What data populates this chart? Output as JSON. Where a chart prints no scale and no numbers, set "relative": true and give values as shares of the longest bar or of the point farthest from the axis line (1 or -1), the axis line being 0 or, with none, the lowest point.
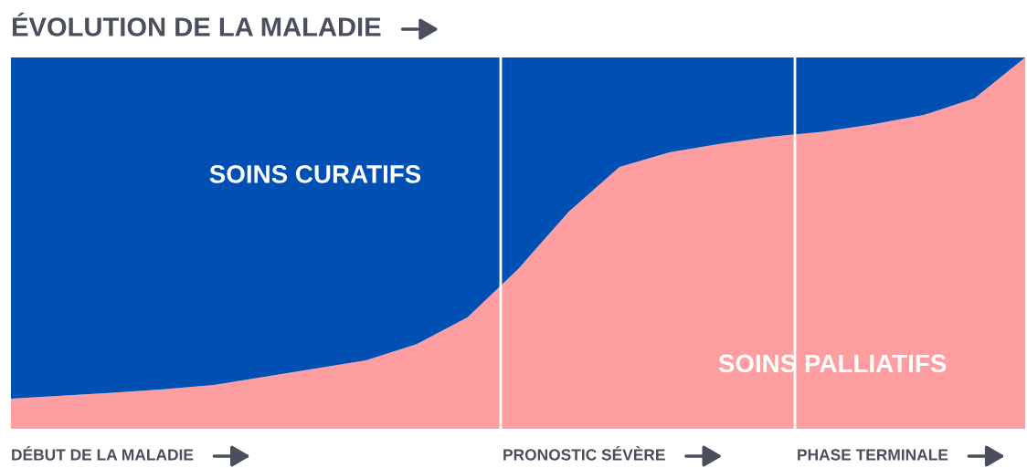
{
  "chart_data": {
    "type": "area",
    "stacked": true,
    "relative": true,
    "title": "ÉVOLUTION DE LA MALADIE",
    "categories": [
      null,
      null,
      null,
      null,
      null,
      null,
      null,
      null,
      null,
      null,
      null,
      null,
      null,
      null,
      null,
      null,
      null,
      null,
      null,
      null,
      null
    ],
    "series": [
      {
        "name": "SOINS PALLIATIFS",
        "color": "#ff9ea0",
        "values": [
          0.081,
          0.089,
          0.097,
          0.106,
          0.118,
          0.14,
          0.162,
          0.184,
          0.228,
          0.3,
          0.43,
          0.585,
          0.705,
          0.745,
          0.768,
          0.787,
          0.8,
          0.82,
          0.845,
          0.89,
          1.0
        ]
      },
      {
        "name": "SOINS CURATIFS",
        "color": "#004fb3",
        "values": [
          0.919,
          0.911,
          0.903,
          0.894,
          0.882,
          0.86,
          0.838,
          0.816,
          0.772,
          0.7,
          0.57,
          0.415,
          0.295,
          0.255,
          0.232,
          0.213,
          0.2,
          0.18,
          0.155,
          0.11,
          0.0
        ]
      }
    ],
    "annotations": [
      "DÉBUT DE LA MALADIE",
      "PRONOSTIC SÉVÈRE",
      "PHASE TERMINALE"
    ],
    "legend": false
  }
}
